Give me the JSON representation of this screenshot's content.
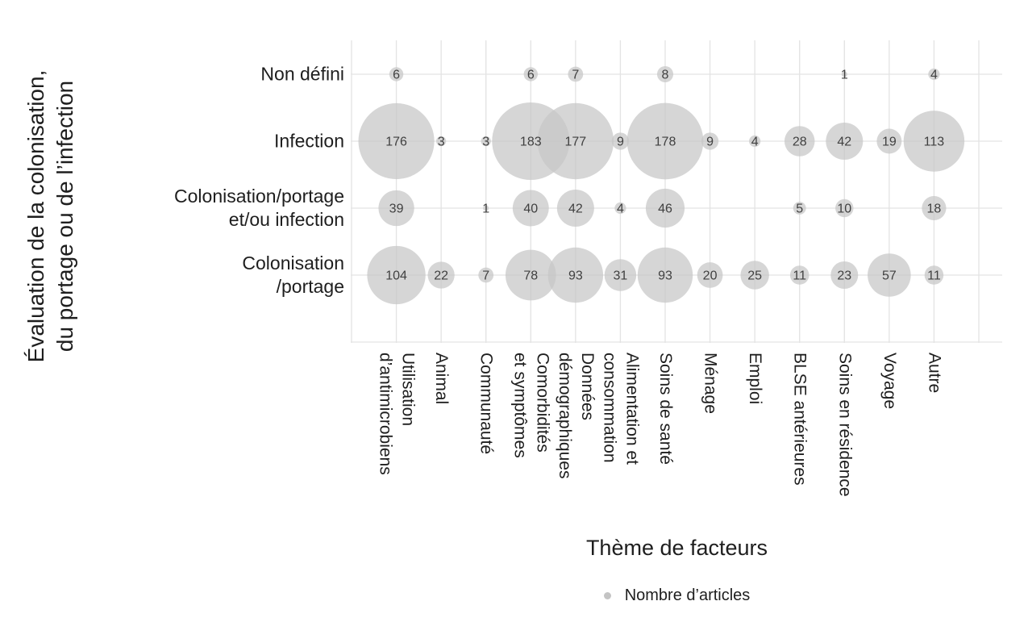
{
  "chart_data": {
    "type": "bubble",
    "title": "",
    "xlabel": "Thème de facteurs",
    "ylabel": "Évaluation de la colonisation,\ndu portage ou de l’infection",
    "legend": {
      "marker": "gray-dot",
      "label": "Nombre d’articles"
    },
    "x_categories": [
      "Utilisation\nd’antimicrobiens",
      "Animal",
      "Communauté",
      "Comorbidités\net symptômes",
      "Données\ndémographiques",
      "Alimentation et\nconsommation",
      "Soins de santé",
      "Ménage",
      "Emploi",
      "BLSE antérieures",
      "Soins en résidence",
      "Voyage",
      "Autre"
    ],
    "y_categories": [
      "Non défini",
      "Infection",
      "Colonisation/portage\net/ou infection",
      "Colonisation\n/portage"
    ],
    "values": [
      [
        6,
        null,
        null,
        6,
        7,
        null,
        8,
        null,
        null,
        null,
        1,
        null,
        4
      ],
      [
        176,
        3,
        3,
        183,
        177,
        9,
        178,
        9,
        4,
        28,
        42,
        19,
        113
      ],
      [
        39,
        null,
        1,
        40,
        42,
        4,
        46,
        null,
        null,
        5,
        10,
        null,
        18
      ],
      [
        104,
        22,
        7,
        78,
        93,
        31,
        93,
        20,
        25,
        11,
        23,
        57,
        11
      ]
    ],
    "size_scale": {
      "max_value": 183,
      "max_radius_px": 48
    },
    "grid": "on",
    "legend_position": "bottom",
    "colors": {
      "bubble_fill": "rgba(198,198,198,0.72)",
      "bubble_value_text": "#404040",
      "gridline": "#e3e3e3",
      "axis_text": "#1e1e1e",
      "legend_dot": "#c4c4c4"
    }
  }
}
